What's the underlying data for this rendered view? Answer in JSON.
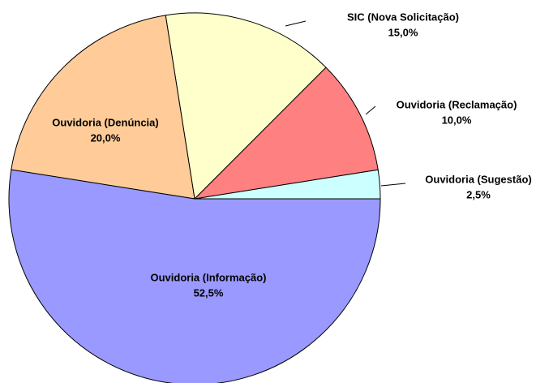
{
  "chart_data": {
    "type": "pie",
    "categories": [
      "Ouvidoria (Sugestão)",
      "Ouvidoria (Reclamação)",
      "SIC (Nova Solicitação)",
      "Ouvidoria (Denúncia)",
      "Ouvidoria (Informação)"
    ],
    "values": [
      2.5,
      10,
      15,
      20,
      52.5
    ],
    "value_labels": [
      "2,5%",
      "10,0%",
      "15,0%",
      "20,0%",
      "52,5%"
    ],
    "colors": [
      "#ccffff",
      "#ff8080",
      "#ffffcc",
      "#ffcc99",
      "#9999ff"
    ]
  }
}
